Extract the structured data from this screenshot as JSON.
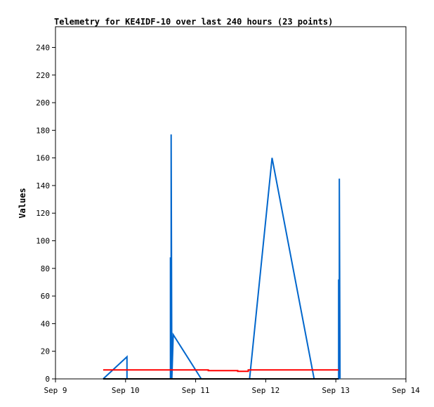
{
  "chart_data": {
    "type": "line",
    "title": "Telemetry for KE4IDF-10 over last 240 hours (23 points)",
    "xlabel": "",
    "ylabel": "Values",
    "x_tick_labels": [
      "Sep 9",
      "Sep 10",
      "Sep 11",
      "Sep 12",
      "Sep 13",
      "Sep 14"
    ],
    "xlim": [
      0,
      5
    ],
    "ylim": [
      0,
      255
    ],
    "y_ticks": [
      0,
      20,
      40,
      60,
      80,
      100,
      120,
      140,
      160,
      180,
      200,
      220,
      240
    ],
    "grid": false,
    "series": [
      {
        "color": "#0066cc",
        "x": [
          0.68,
          1.02,
          1.02,
          1.64,
          1.64,
          1.65,
          1.65,
          1.66,
          1.68,
          2.08,
          2.77,
          3.09,
          3.69,
          4.04,
          4.04,
          4.05,
          4.05,
          4.06
        ],
        "y": [
          0,
          16,
          0,
          0,
          88,
          0,
          177,
          0,
          32,
          0,
          0,
          160,
          0,
          0,
          72,
          0,
          145,
          0
        ]
      },
      {
        "color": "#ff0000",
        "x": [
          0.68,
          2.18,
          2.18,
          2.6,
          2.6,
          2.75,
          2.75,
          4.04
        ],
        "y": [
          6.5,
          6.5,
          6,
          6,
          5.5,
          5.5,
          6.5,
          6.5
        ]
      },
      {
        "color": "#000000",
        "x": [
          0.68,
          4.04
        ],
        "y": [
          0,
          0
        ]
      }
    ]
  }
}
